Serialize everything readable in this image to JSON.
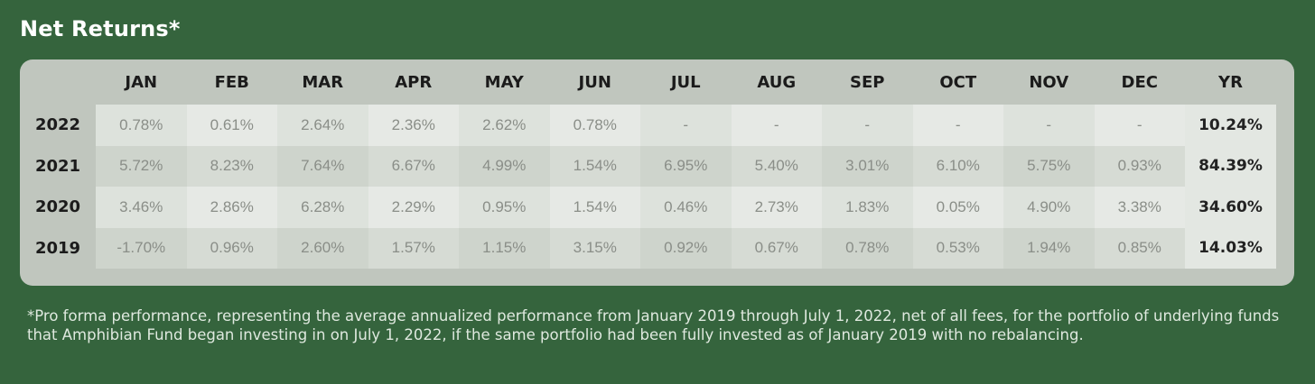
{
  "title": "Net Returns*",
  "chart_data": {
    "type": "table",
    "columns": [
      "JAN",
      "FEB",
      "MAR",
      "APR",
      "MAY",
      "JUN",
      "JUL",
      "AUG",
      "SEP",
      "OCT",
      "NOV",
      "DEC",
      "YR"
    ],
    "rows": [
      {
        "year": "2022",
        "values": [
          "0.78%",
          "0.61%",
          "2.64%",
          "2.36%",
          "2.62%",
          "0.78%",
          "-",
          "-",
          "-",
          "-",
          "-",
          "-"
        ],
        "yr": "10.24%"
      },
      {
        "year": "2021",
        "values": [
          "5.72%",
          "8.23%",
          "7.64%",
          "6.67%",
          "4.99%",
          "1.54%",
          "6.95%",
          "5.40%",
          "3.01%",
          "6.10%",
          "5.75%",
          "0.93%"
        ],
        "yr": "84.39%"
      },
      {
        "year": "2020",
        "values": [
          "3.46%",
          "2.86%",
          "6.28%",
          "2.29%",
          "0.95%",
          "1.54%",
          "0.46%",
          "2.73%",
          "1.83%",
          "0.05%",
          "4.90%",
          "3.38%"
        ],
        "yr": "34.60%"
      },
      {
        "year": "2019",
        "values": [
          "-1.70%",
          "0.96%",
          "2.60%",
          "1.57%",
          "1.15%",
          "3.15%",
          "0.92%",
          "0.67%",
          "0.78%",
          "0.53%",
          "1.94%",
          "0.85%"
        ],
        "yr": "14.03%"
      }
    ]
  },
  "footnote": "*Pro forma performance, representing the average annualized performance from January 2019 through July 1, 2022, net of all fees, for the portfolio of underlying funds that Amphibian Fund began investing in on July 1, 2022, if the same portfolio had been fully invested as of January 2019 with no rebalancing."
}
